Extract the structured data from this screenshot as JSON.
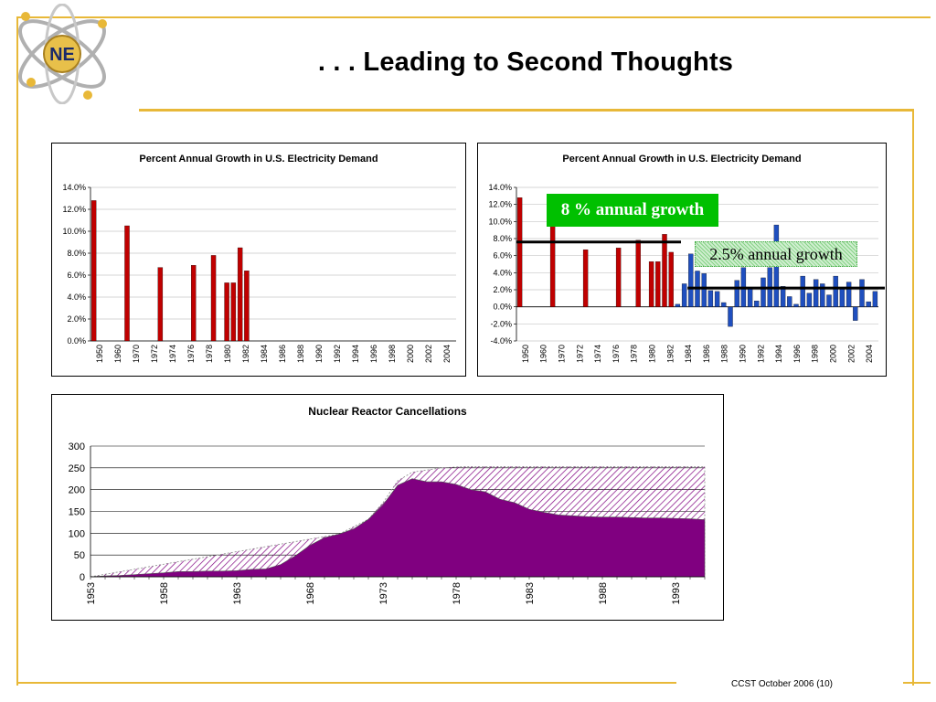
{
  "slide": {
    "title": ". . . Leading to Second Thoughts",
    "footer": "CCST October 2006 (10)",
    "logo_text": "NE"
  },
  "colors": {
    "frame_gold": "#e8b838",
    "frame_gray": "#9a9a9a",
    "bar_red": "#c00000",
    "bar_blue": "#1f4fbf",
    "area_purple": "#800080",
    "callout_green": "#00c000"
  },
  "callouts": {
    "growth_8": "8 % annual growth",
    "growth_25": "2.5% annual growth"
  },
  "chart_data": [
    {
      "type": "bar",
      "title": "Percent Annual Growth in U.S. Electricity Demand",
      "xlabel": "",
      "ylabel": "",
      "ylim": [
        0,
        14
      ],
      "y_ticks": [
        "0.0%",
        "2.0%",
        "4.0%",
        "6.0%",
        "8.0%",
        "10.0%",
        "12.0%",
        "14.0%"
      ],
      "x_start": 1950,
      "x_end": 2004,
      "x_tick_labels": [
        "1950",
        "1960",
        "1970",
        "1972",
        "1974",
        "1976",
        "1978",
        "1980",
        "1982",
        "1984",
        "1986",
        "1988",
        "1990",
        "1992",
        "1994",
        "1996",
        "1998",
        "2000",
        "2002",
        "2004"
      ],
      "grid": true,
      "legend": "none",
      "series": [
        {
          "color": "red",
          "x": [
            1950,
            1955,
            1960,
            1965,
            1968,
            1970,
            1971,
            1972,
            1973
          ],
          "values": [
            12.8,
            10.5,
            6.7,
            6.9,
            7.8,
            5.3,
            5.3,
            8.5,
            6.4
          ]
        }
      ]
    },
    {
      "type": "bar",
      "title": "Percent Annual Growth in U.S. Electricity Demand",
      "xlabel": "",
      "ylabel": "",
      "ylim": [
        -4,
        14
      ],
      "y_ticks": [
        "-4.0%",
        "-2.0%",
        "0.0%",
        "2.0%",
        "4.0%",
        "6.0%",
        "8.0%",
        "10.0%",
        "12.0%",
        "14.0%"
      ],
      "x_start": 1950,
      "x_end": 2004,
      "x_tick_labels": [
        "1950",
        "1960",
        "1970",
        "1972",
        "1974",
        "1976",
        "1978",
        "1980",
        "1982",
        "1984",
        "1986",
        "1988",
        "1990",
        "1992",
        "1994",
        "1996",
        "1998",
        "2000",
        "2002",
        "2004"
      ],
      "grid": true,
      "legend": "none",
      "reference_lines": [
        {
          "value": 7.6,
          "x_from": 1950,
          "x_to": 1974
        },
        {
          "value": 2.2,
          "x_from": 1976,
          "x_to": 2005
        }
      ],
      "series": [
        {
          "color": "red",
          "x": [
            1950,
            1955,
            1960,
            1965,
            1968,
            1970,
            1971,
            1972,
            1973
          ],
          "values": [
            12.8,
            10.5,
            6.7,
            6.9,
            7.8,
            5.3,
            5.3,
            8.5,
            6.4
          ]
        },
        {
          "color": "blue",
          "x": [
            1974,
            1975,
            1976,
            1977,
            1978,
            1979,
            1980,
            1981,
            1982,
            1983,
            1984,
            1985,
            1986,
            1987,
            1988,
            1989,
            1990,
            1991,
            1992,
            1993,
            1994,
            1995,
            1996,
            1997,
            1998,
            1999,
            2000,
            2001,
            2002,
            2003,
            2004
          ],
          "values": [
            0.3,
            2.7,
            6.2,
            4.2,
            3.9,
            1.9,
            1.8,
            0.5,
            -2.3,
            3.1,
            4.6,
            2.1,
            0.7,
            3.4,
            4.6,
            9.6,
            2.4,
            1.2,
            0.3,
            3.6,
            1.6,
            3.2,
            2.7,
            1.4,
            3.6,
            2.1,
            2.9,
            -1.6,
            3.2,
            0.6,
            1.8
          ]
        }
      ]
    },
    {
      "type": "area",
      "title": "Nuclear Reactor Cancellations",
      "xlabel": "",
      "ylabel": "",
      "ylim": [
        0,
        300
      ],
      "y_ticks": [
        "0",
        "50",
        "100",
        "150",
        "200",
        "250",
        "300"
      ],
      "x_ticks": [
        "1953",
        "1958",
        "1963",
        "1968",
        "1973",
        "1978",
        "1983",
        "1988",
        "1993"
      ],
      "grid": true,
      "legend": "none",
      "series": [
        {
          "style": "solid",
          "color": "purple",
          "x": [
            1953,
            1954,
            1955,
            1956,
            1957,
            1958,
            1959,
            1960,
            1961,
            1962,
            1963,
            1964,
            1965,
            1966,
            1967,
            1968,
            1969,
            1970,
            1971,
            1972,
            1973,
            1974,
            1975,
            1976,
            1977,
            1978,
            1979,
            1980,
            1981,
            1982,
            1983,
            1984,
            1985,
            1986,
            1987,
            1988,
            1989,
            1990,
            1991,
            1992,
            1993,
            1994,
            1995
          ],
          "values": [
            0,
            2,
            3,
            5,
            7,
            9,
            12,
            12,
            13,
            13,
            14,
            17,
            18,
            28,
            48,
            72,
            90,
            98,
            110,
            132,
            165,
            210,
            225,
            218,
            218,
            212,
            200,
            195,
            178,
            170,
            155,
            148,
            142,
            140,
            138,
            137,
            137,
            136,
            135,
            135,
            134,
            133,
            131
          ]
        },
        {
          "style": "hatched",
          "color": "purple",
          "x": [
            1953,
            1970,
            1972,
            1973,
            1974,
            1975,
            1976,
            1977,
            1978,
            1979,
            1980,
            1985,
            1990,
            1995
          ],
          "values": [
            0,
            98,
            132,
            170,
            220,
            240,
            245,
            250,
            252,
            253,
            253,
            253,
            253,
            253
          ]
        }
      ]
    }
  ]
}
